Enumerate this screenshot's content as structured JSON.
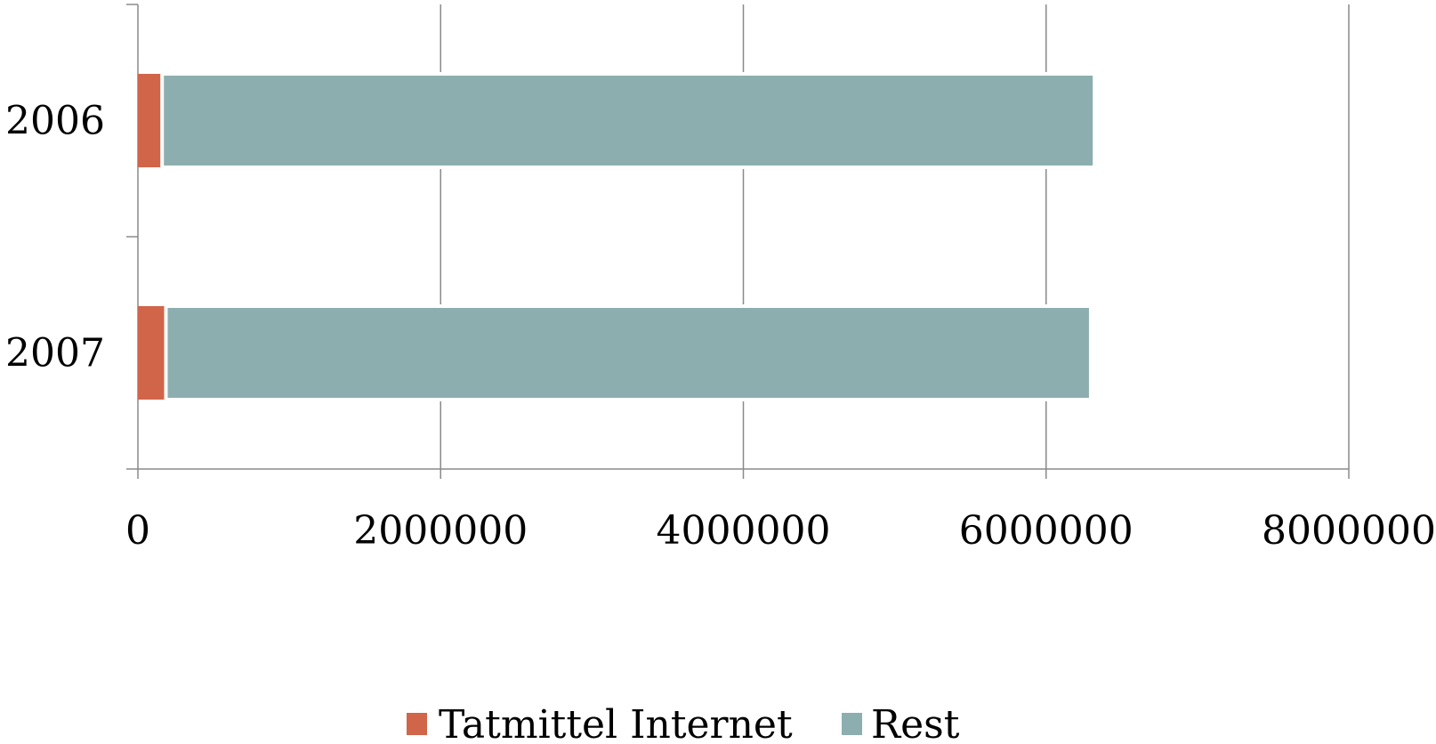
{
  "chart_data": {
    "type": "bar",
    "orientation": "horizontal",
    "stacked": true,
    "categories": [
      "2006",
      "2007"
    ],
    "series": [
      {
        "name": "Tatmittel Internet",
        "values": [
          160000,
          185000
        ],
        "color": "#d0654a"
      },
      {
        "name": "Rest",
        "values": [
          6160000,
          6110000
        ],
        "color": "#8daeae"
      }
    ],
    "x_ticks": [
      "0",
      "2000000",
      "4000000",
      "6000000",
      "8000000"
    ],
    "xlim": [
      0,
      8000000
    ],
    "grid": true,
    "legend_position": "bottom"
  }
}
